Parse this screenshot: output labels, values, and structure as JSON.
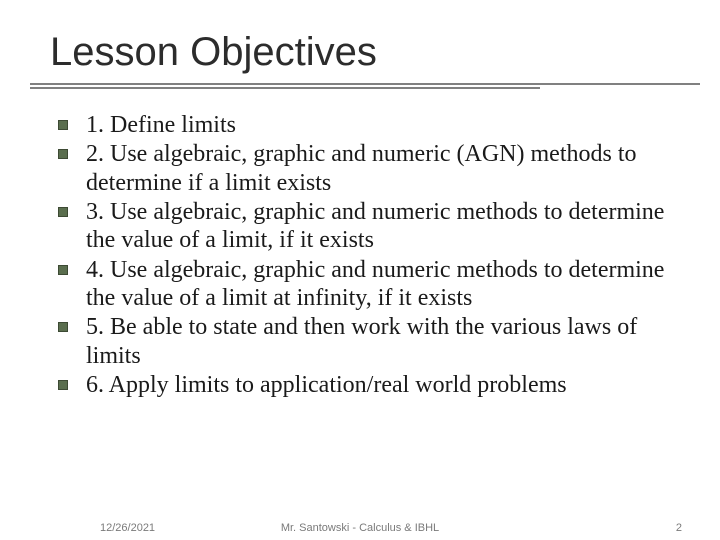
{
  "title": "Lesson Objectives",
  "bullet_color": "#5a6e4e",
  "bullet_border": "#3d4a34",
  "rule_color": "#808080",
  "text_color": "#1a1a1a",
  "footer_color": "#7a7a7a",
  "background_color": "#ffffff",
  "title_fontsize": 40,
  "body_fontsize": 24,
  "footer_fontsize": 11,
  "objectives": [
    "1. Define limits",
    "2. Use algebraic, graphic and numeric (AGN) methods to determine if a limit exists",
    "3. Use algebraic, graphic and numeric methods to determine the value of a limit, if it exists",
    "4. Use algebraic, graphic and numeric methods to determine the value of a limit at infinity, if it exists",
    "5. Be able to state and then work with the various laws of limits",
    "6. Apply limits to application/real world problems"
  ],
  "footer": {
    "date": "12/26/2021",
    "center": "Mr. Santowski - Calculus & IBHL",
    "page": "2"
  }
}
